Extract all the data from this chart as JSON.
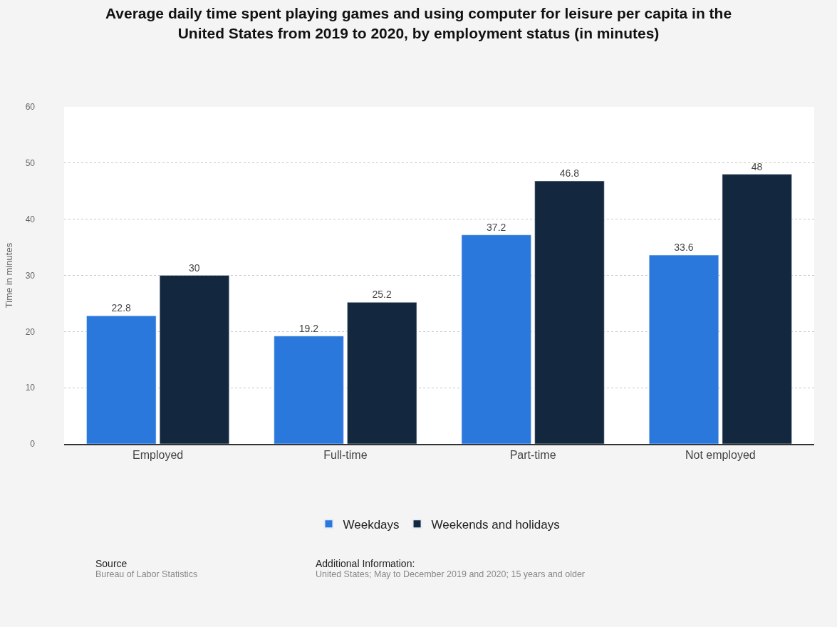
{
  "chart_data": {
    "type": "bar",
    "title": "Average daily time spent playing games and using computer for leisure per capita in the United States from 2019 to 2020, by employment status (in minutes)",
    "ylabel": "Time in minutes",
    "categories": [
      "Employed",
      "Full-time",
      "Part-time",
      "Not employed"
    ],
    "series": [
      {
        "name": "Weekdays",
        "color": "#2a78dc",
        "values": [
          22.8,
          19.2,
          37.2,
          33.6
        ]
      },
      {
        "name": "Weekends and holidays",
        "color": "#13273e",
        "values": [
          30,
          25.2,
          46.8,
          48
        ]
      }
    ],
    "ylim": [
      0,
      60
    ],
    "yticks": [
      0,
      10,
      20,
      30,
      40,
      50,
      60
    ],
    "grid": "y",
    "legend": "bottom",
    "data_labels": true,
    "annotations": [
      "Source",
      "Bureau of Labor Statistics",
      "Additional Information:",
      "United States; May to December 2019 and 2020; 15 years and older"
    ]
  }
}
